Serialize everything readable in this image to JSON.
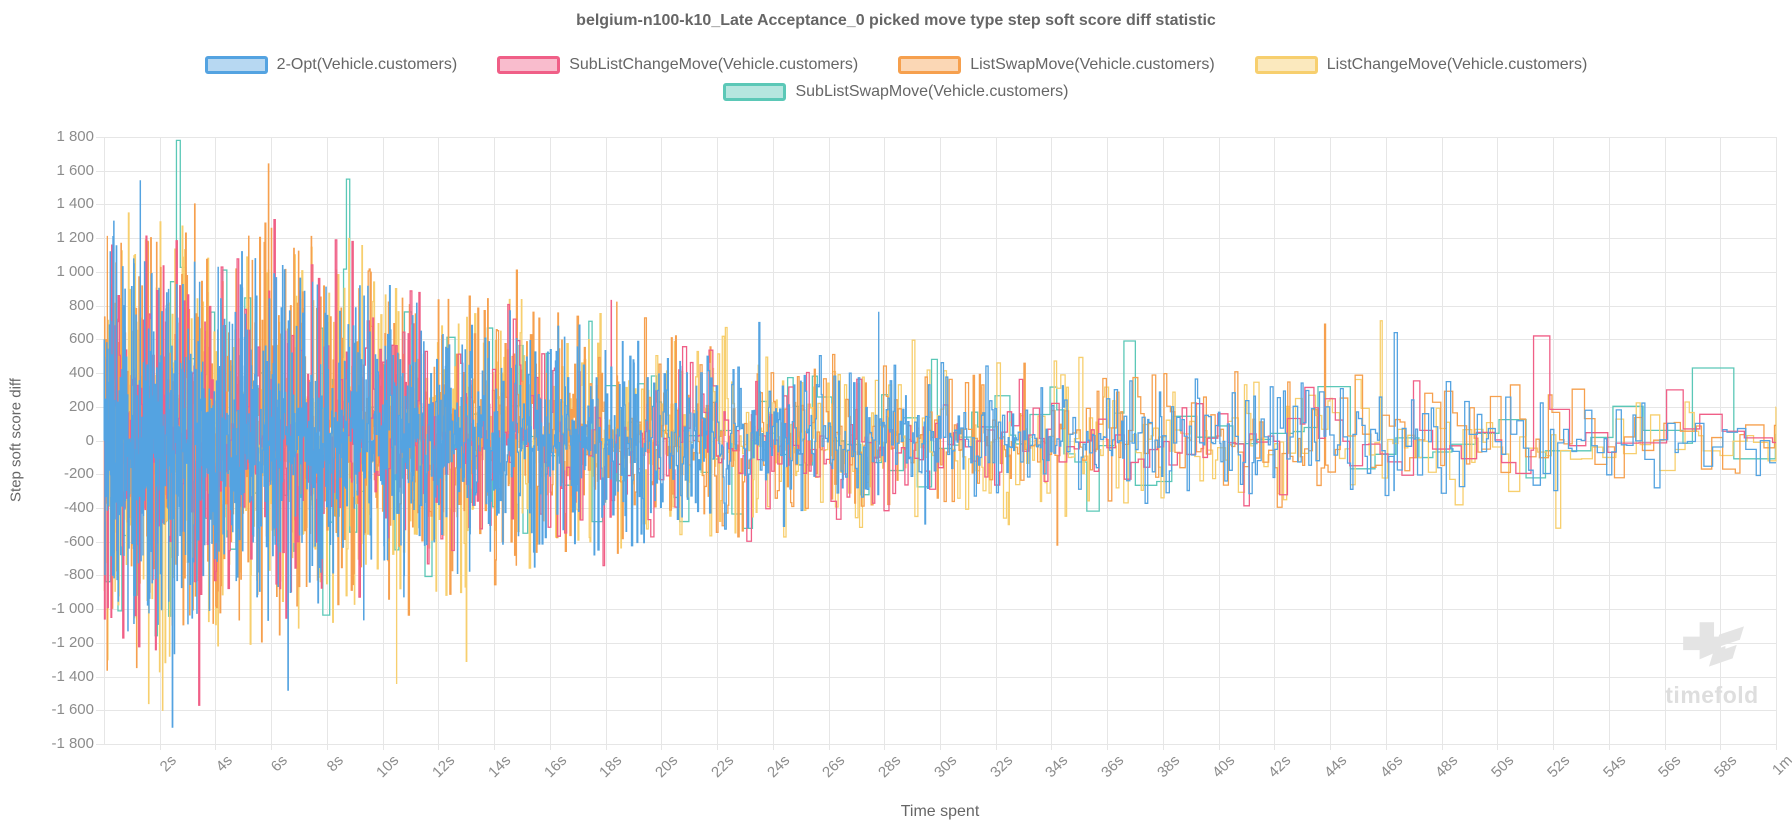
{
  "watermark": {
    "brand": "timefold"
  },
  "chart_data": {
    "type": "line",
    "stepped": true,
    "title": "belgium-n100-k10_Late Acceptance_0 picked move type step soft score diff statistic",
    "xlabel": "Time spent",
    "ylabel": "Step soft score diff",
    "xlim_seconds": [
      0,
      60
    ],
    "ylim": [
      -1800,
      1800
    ],
    "grid": true,
    "legend_position": "top",
    "x_tick_seconds": [
      2,
      4,
      6,
      8,
      10,
      12,
      14,
      16,
      18,
      20,
      22,
      24,
      26,
      28,
      30,
      32,
      34,
      36,
      38,
      40,
      42,
      44,
      46,
      48,
      50,
      52,
      54,
      56,
      58,
      60
    ],
    "x_tick_labels": [
      "2s",
      "4s",
      "6s",
      "8s",
      "10s",
      "12s",
      "14s",
      "16s",
      "18s",
      "20s",
      "22s",
      "24s",
      "26s",
      "28s",
      "30s",
      "32s",
      "34s",
      "36s",
      "38s",
      "40s",
      "42s",
      "44s",
      "46s",
      "48s",
      "50s",
      "52s",
      "54s",
      "56s",
      "58s",
      "1m"
    ],
    "y_tick_values": [
      1800,
      1600,
      1400,
      1200,
      1000,
      800,
      600,
      400,
      200,
      0,
      -200,
      -400,
      -600,
      -800,
      -1000,
      -1200,
      -1400,
      -1600,
      -1800
    ],
    "y_tick_labels": [
      "1 800",
      "1 600",
      "1 400",
      "1 200",
      "1 000",
      "800",
      "600",
      "400",
      "200",
      "0",
      "-200",
      "-400",
      "-600",
      "-800",
      "-1 000",
      "-1 200",
      "-1 400",
      "-1 600",
      "-1 800"
    ],
    "legend_rows": [
      [
        0,
        1,
        2,
        3
      ],
      [
        4
      ]
    ],
    "series": [
      {
        "name": "2-Opt(Vehicle.customers)",
        "color": "#54a3e1",
        "fill": "rgba(84,163,225,0.42)",
        "seed": 101,
        "dt_start_s": 0.01,
        "dt_end_s": 0.28,
        "amp": 0.95,
        "draw_order": 5
      },
      {
        "name": "SubListChangeMove(Vehicle.customers)",
        "color": "#f05f87",
        "fill": "rgba(240,95,135,0.42)",
        "seed": 202,
        "dt_start_s": 0.03,
        "dt_end_s": 0.9,
        "amp": 1.0,
        "draw_order": 4
      },
      {
        "name": "ListSwapMove(Vehicle.customers)",
        "color": "#f6a04e",
        "fill": "rgba(246,160,78,0.42)",
        "seed": 303,
        "dt_start_s": 0.014,
        "dt_end_s": 0.45,
        "amp": 1.08,
        "draw_order": 3
      },
      {
        "name": "ListChangeMove(Vehicle.customers)",
        "color": "#f7cf6e",
        "fill": "rgba(247,207,110,0.45)",
        "seed": 404,
        "dt_start_s": 0.014,
        "dt_end_s": 0.45,
        "amp": 1.08,
        "draw_order": 2
      },
      {
        "name": "SubListSwapMove(Vehicle.customers)",
        "color": "#5bc8b7",
        "fill": "rgba(91,200,183,0.45)",
        "seed": 505,
        "dt_start_s": 0.12,
        "dt_end_s": 1.5,
        "amp": 1.0,
        "draw_order": 1
      }
    ],
    "amplitude_envelope": [
      [
        0,
        430
      ],
      [
        2,
        420
      ],
      [
        4,
        400
      ],
      [
        6,
        390
      ],
      [
        8,
        360
      ],
      [
        10,
        330
      ],
      [
        12,
        300
      ],
      [
        14,
        280
      ],
      [
        16,
        260
      ],
      [
        18,
        240
      ],
      [
        20,
        215
      ],
      [
        24,
        185
      ],
      [
        28,
        165
      ],
      [
        32,
        150
      ],
      [
        36,
        140
      ],
      [
        40,
        132
      ],
      [
        44,
        128
      ],
      [
        48,
        122
      ],
      [
        52,
        118
      ],
      [
        56,
        114
      ],
      [
        60,
        110
      ]
    ],
    "tail_compression": {
      "knee1": 1.8,
      "slope1": 0.55,
      "knee2": 2.6,
      "slope2": 0.3
    },
    "notable_spikes": [
      {
        "series": 0,
        "t": 0.35,
        "value": 1300
      },
      {
        "series": 0,
        "t": 1.3,
        "value": 1540
      },
      {
        "series": 0,
        "t": 2.45,
        "value": -1700
      },
      {
        "series": 0,
        "t": 6.6,
        "value": -1480
      },
      {
        "series": 0,
        "t": 23.5,
        "value": 700
      },
      {
        "series": 0,
        "t": 27.8,
        "value": 760
      },
      {
        "series": 0,
        "t": 46.3,
        "value": 640
      },
      {
        "series": 1,
        "t": 3.4,
        "value": -1570
      },
      {
        "series": 1,
        "t": 6.1,
        "value": 1310
      },
      {
        "series": 1,
        "t": 8.3,
        "value": 1190
      },
      {
        "series": 1,
        "t": 8.9,
        "value": 1180
      },
      {
        "series": 1,
        "t": 18.2,
        "value": 830
      },
      {
        "series": 1,
        "t": 51.3,
        "value": 620
      },
      {
        "series": 2,
        "t": 0.12,
        "value": 1210
      },
      {
        "series": 2,
        "t": 5.9,
        "value": 1640
      },
      {
        "series": 2,
        "t": 14.8,
        "value": 1010
      },
      {
        "series": 2,
        "t": 18.4,
        "value": 820
      },
      {
        "series": 2,
        "t": 34.2,
        "value": -620
      },
      {
        "series": 2,
        "t": 43.8,
        "value": 690
      },
      {
        "series": 3,
        "t": 1.6,
        "value": -1560
      },
      {
        "series": 3,
        "t": 2.1,
        "value": -1600
      },
      {
        "series": 3,
        "t": 10.5,
        "value": -1440
      },
      {
        "series": 3,
        "t": 13.0,
        "value": -1310
      },
      {
        "series": 3,
        "t": 45.8,
        "value": 710
      },
      {
        "series": 3,
        "t": 52.1,
        "value": -520
      },
      {
        "series": 4,
        "t": 2.6,
        "value": 1780
      },
      {
        "series": 4,
        "t": 8.7,
        "value": 1550
      },
      {
        "series": 4,
        "t": 36.6,
        "value": 590
      },
      {
        "series": 4,
        "t": 57.0,
        "value": 430
      }
    ]
  }
}
